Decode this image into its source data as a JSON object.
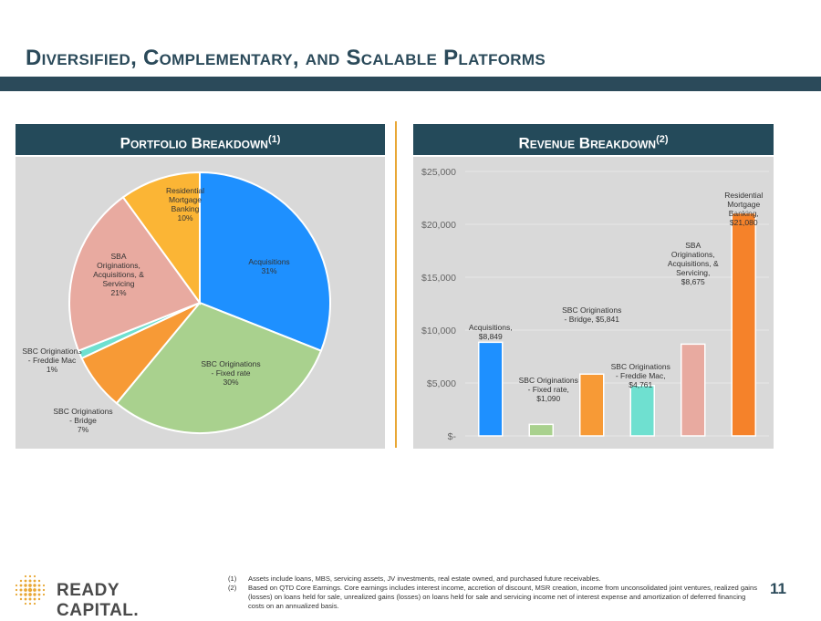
{
  "page": {
    "title": "Diversified, Complementary, and Scalable Platforms",
    "page_number": "11"
  },
  "left_panel": {
    "header": "Portfolio Breakdown",
    "header_sup": "(1)"
  },
  "right_panel": {
    "header": "Revenue Breakdown",
    "header_sup": "(2)"
  },
  "logo": {
    "text": "READY CAPITAL."
  },
  "footnotes": [
    {
      "num": "(1)",
      "text": "Assets include loans, MBS, servicing assets, JV investments, real estate owned, and purchased future receivables."
    },
    {
      "num": "(2)",
      "text": "Based on QTD Core Earnings. Core earnings includes interest income, accretion of discount, MSR creation, income from unconsolidated joint ventures, realized gains (losses) on loans held for sale, unrealized gains (losses) on loans held for sale and servicing income net of interest expense and amortization of deferred financing costs on an annualized basis."
    }
  ],
  "chart_data": [
    {
      "type": "pie",
      "slices": [
        {
          "label": [
            "Acquisitions",
            "31%"
          ],
          "value": 31,
          "color": "#1e90ff"
        },
        {
          "label": [
            "SBC Originations",
            "- Fixed rate",
            "30%"
          ],
          "value": 30,
          "color": "#a9d18e"
        },
        {
          "label": [
            "SBC Originations",
            "- Bridge",
            "7%"
          ],
          "value": 7,
          "color": "#f79a36"
        },
        {
          "label": [
            "SBC Originations",
            "- Freddie Mac",
            "1%"
          ],
          "value": 1,
          "color": "#6fe0d0"
        },
        {
          "label": [
            "SBA",
            "Originations,",
            "Acquisitions, &",
            "Servicing",
            "21%"
          ],
          "value": 21,
          "color": "#e8aaa0"
        },
        {
          "label": [
            "Residential",
            "Mortgage",
            "Banking",
            "10%"
          ],
          "value": 10,
          "color": "#fbb535"
        }
      ]
    },
    {
      "type": "bar",
      "ylim": [
        0,
        25000
      ],
      "yticks": [
        "$-",
        "$5,000",
        "$10,000",
        "$15,000",
        "$20,000",
        "$25,000"
      ],
      "bars": [
        {
          "label": [
            "Acquisitions,",
            "$8,849"
          ],
          "value": 8849,
          "color": "#1e90ff"
        },
        {
          "label": [
            "SBC Originations",
            "- Fixed rate,",
            "$1,090"
          ],
          "value": 1090,
          "color": "#a9d18e"
        },
        {
          "label": [
            "SBC Originations",
            "- Bridge,  $5,841"
          ],
          "value": 5841,
          "color": "#f79a36"
        },
        {
          "label": [
            "SBC Originations",
            "- Freddie Mac,",
            "$4,761"
          ],
          "value": 4761,
          "color": "#6fe0d0"
        },
        {
          "label": [
            "SBA",
            "Originations,",
            "Acquisitions, &",
            "Servicing,",
            "$8,675"
          ],
          "value": 8675,
          "color": "#e8aaa0"
        },
        {
          "label": [
            "Residential",
            "Mortgage",
            "Banking,",
            "$21,080"
          ],
          "value": 21080,
          "color": "#f5822a"
        }
      ]
    }
  ]
}
